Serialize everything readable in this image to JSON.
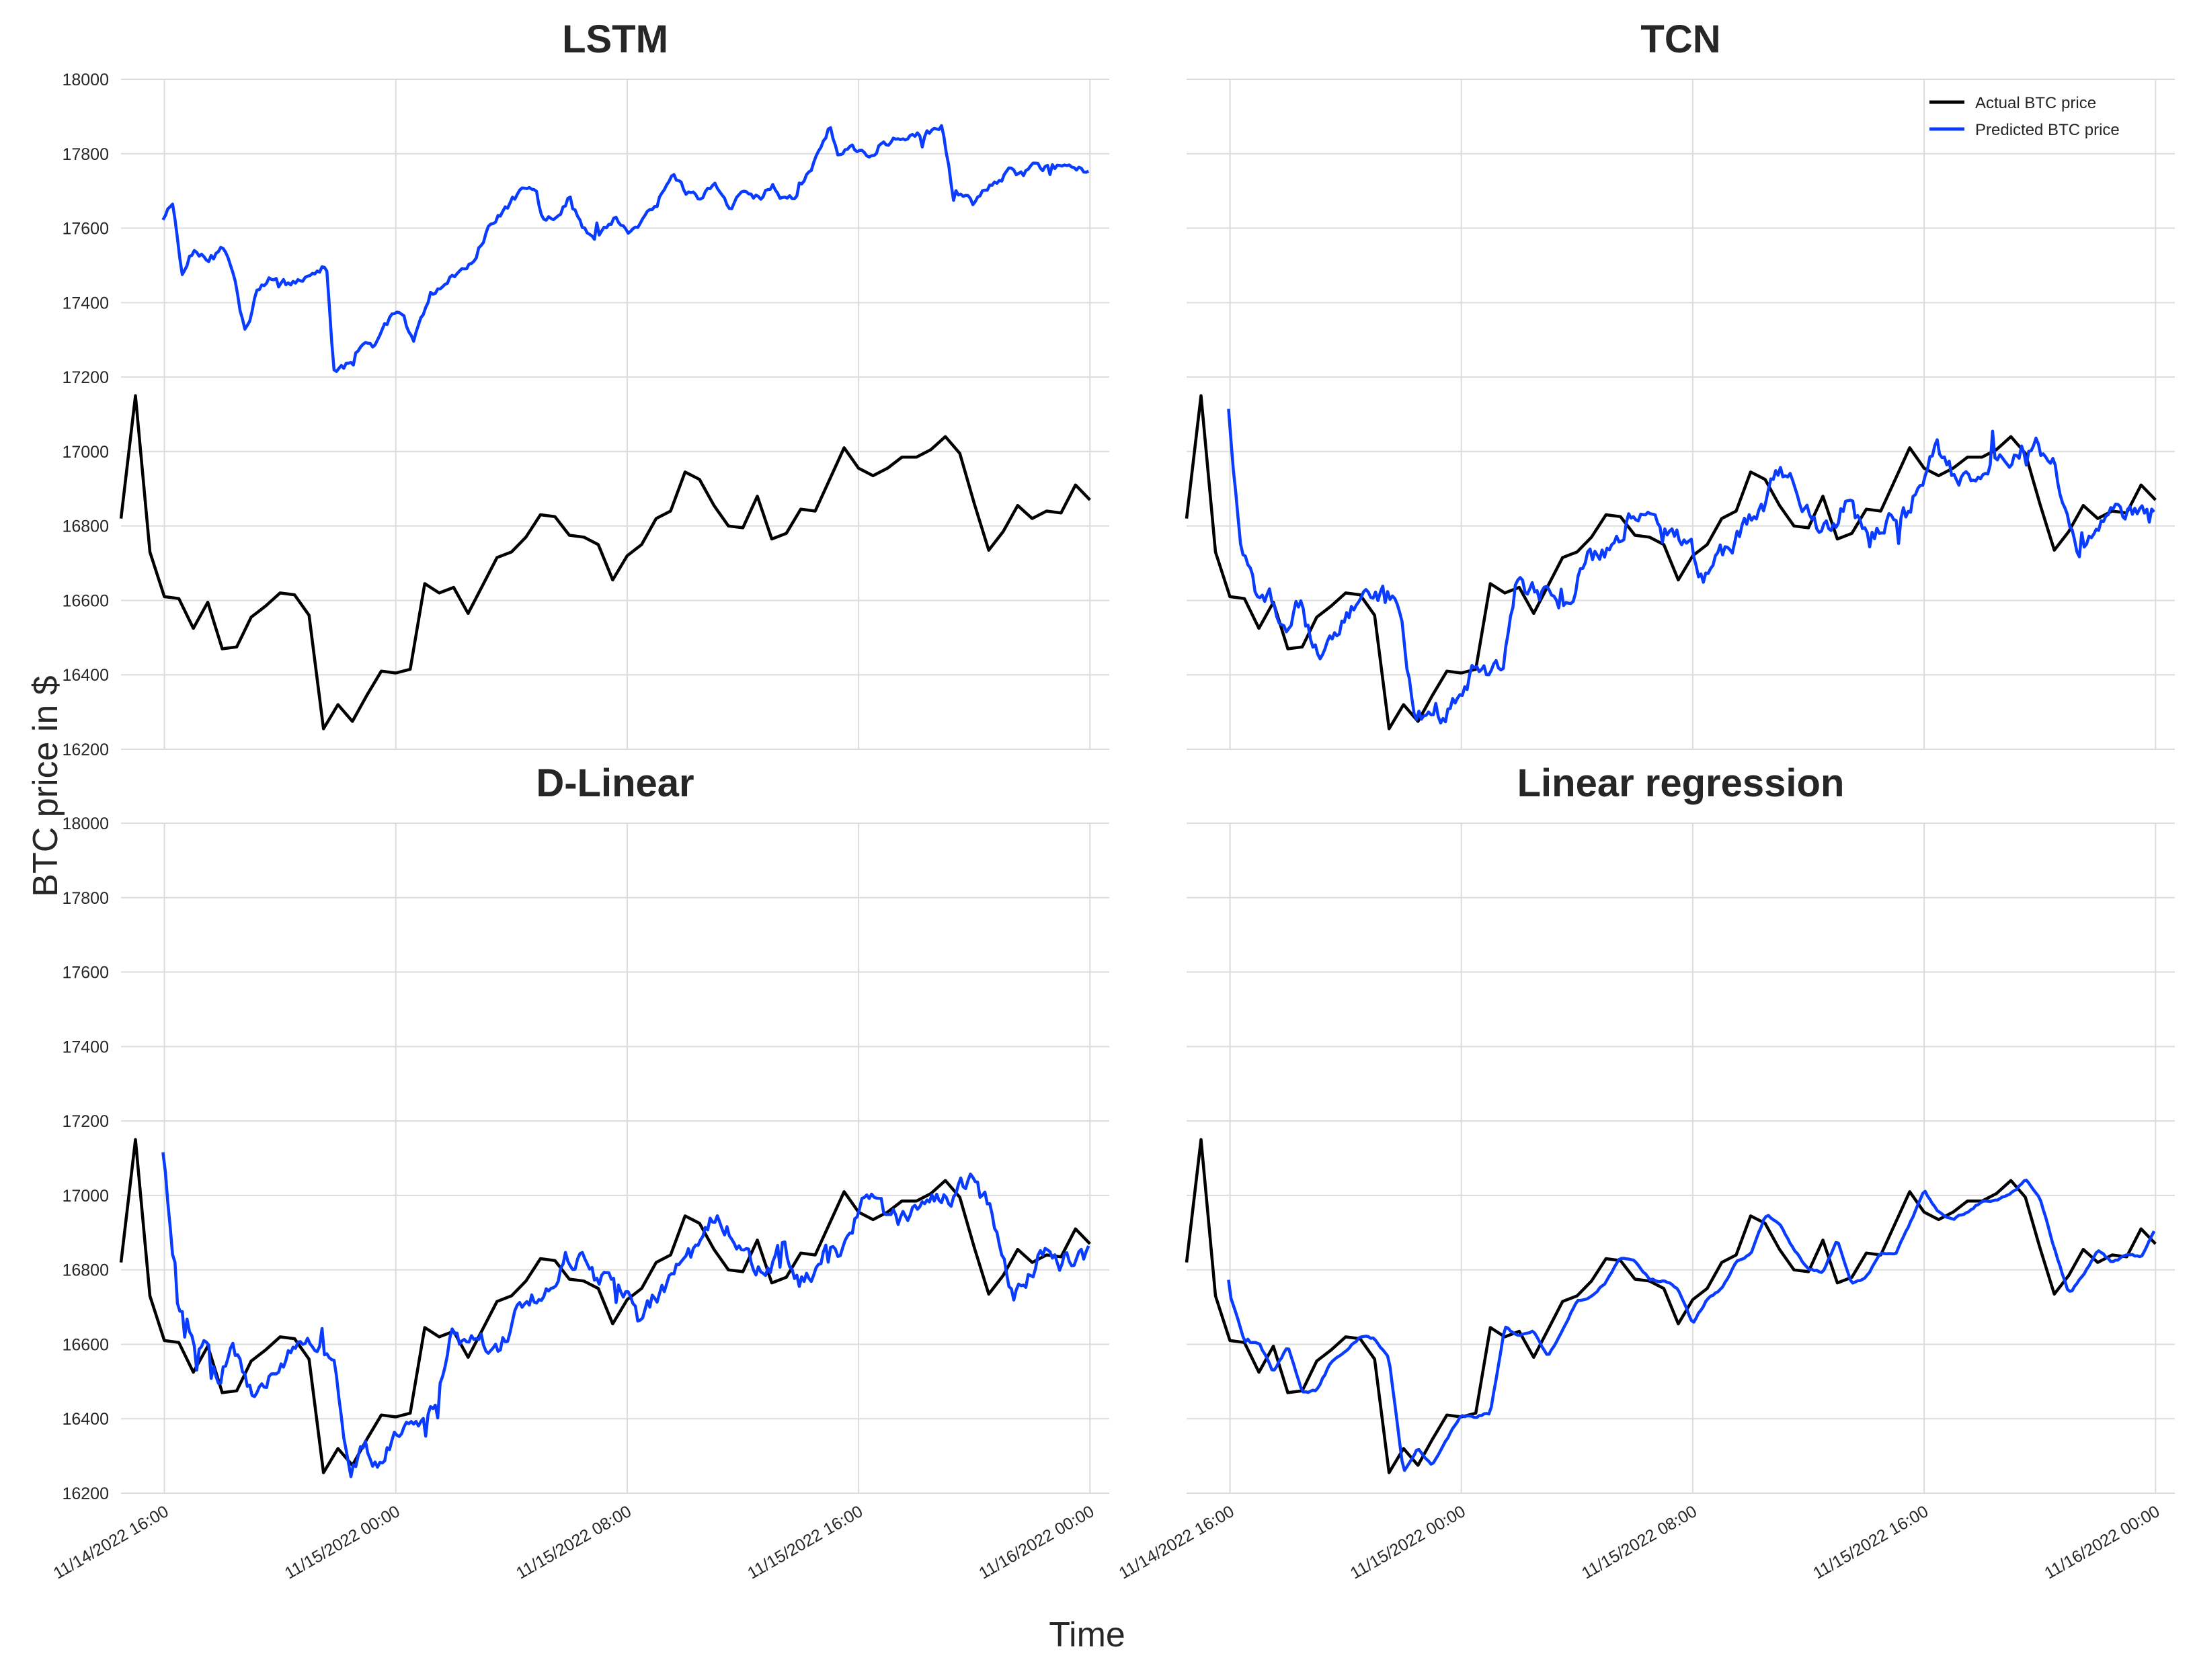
{
  "figure": {
    "ylabel": "BTC price in $",
    "xlabel": "Time",
    "yticks": [
      "18000",
      "17800",
      "17600",
      "17400",
      "17200",
      "17000",
      "16800",
      "16600",
      "16400",
      "16200"
    ],
    "xticks": [
      "11/14/2022 16:00",
      "11/15/2022 00:00",
      "11/15/2022 08:00",
      "11/15/2022 16:00",
      "11/16/2022 00:00"
    ]
  },
  "legend": {
    "actual_label": "Actual BTC price",
    "predicted_label": "Predicted BTC price"
  },
  "colors": {
    "actual": "#000000",
    "predicted": "#0a3cff"
  },
  "chart_data": {
    "type": "line",
    "x_axis": {
      "type": "datetime",
      "unit": "hours",
      "xlim": [
        "11/14/2022 14:30",
        "11/16/2022 00:40"
      ],
      "ticks": [
        "11/14/2022 16:00",
        "11/15/2022 00:00",
        "11/15/2022 08:00",
        "11/15/2022 16:00",
        "11/16/2022 00:00"
      ]
    },
    "ylim": [
      16200,
      18000
    ],
    "grid": true,
    "legend_position": "top-right of TCN panel",
    "actual": {
      "name": "Actual BTC price",
      "x": [
        "11/14/2022 14:30",
        "11/14/2022 15:00",
        "11/14/2022 15:30",
        "11/14/2022 16:00",
        "11/14/2022 16:30",
        "11/14/2022 17:00",
        "11/14/2022 17:30",
        "11/14/2022 18:00",
        "11/14/2022 18:30",
        "11/14/2022 19:00",
        "11/14/2022 19:30",
        "11/14/2022 20:00",
        "11/14/2022 20:30",
        "11/14/2022 21:00",
        "11/14/2022 21:30",
        "11/14/2022 22:00",
        "11/14/2022 22:30",
        "11/14/2022 23:00",
        "11/14/2022 23:30",
        "11/15/2022 00:00",
        "11/15/2022 00:30",
        "11/15/2022 01:00",
        "11/15/2022 01:30",
        "11/15/2022 02:00",
        "11/15/2022 02:30",
        "11/15/2022 03:00",
        "11/15/2022 03:30",
        "11/15/2022 04:00",
        "11/15/2022 04:30",
        "11/15/2022 05:00",
        "11/15/2022 05:30",
        "11/15/2022 06:00",
        "11/15/2022 06:30",
        "11/15/2022 07:00",
        "11/15/2022 07:30",
        "11/15/2022 08:00",
        "11/15/2022 08:30",
        "11/15/2022 09:00",
        "11/15/2022 09:30",
        "11/15/2022 10:00",
        "11/15/2022 10:30",
        "11/15/2022 11:00",
        "11/15/2022 11:30",
        "11/15/2022 12:00",
        "11/15/2022 12:30",
        "11/15/2022 13:00",
        "11/15/2022 13:30",
        "11/15/2022 14:00",
        "11/15/2022 14:30",
        "11/15/2022 15:00",
        "11/15/2022 15:30",
        "11/15/2022 16:00",
        "11/15/2022 16:30",
        "11/15/2022 17:00",
        "11/15/2022 17:30",
        "11/15/2022 18:00",
        "11/15/2022 18:30",
        "11/15/2022 19:00",
        "11/15/2022 19:30",
        "11/15/2022 20:00",
        "11/15/2022 20:30",
        "11/15/2022 21:00",
        "11/15/2022 21:30",
        "11/15/2022 22:00",
        "11/15/2022 22:30",
        "11/15/2022 23:00",
        "11/15/2022 23:30",
        "11/16/2022 00:00"
      ],
      "values": [
        16820,
        17150,
        16730,
        16610,
        16605,
        16525,
        16595,
        16470,
        16475,
        16555,
        16585,
        16620,
        16615,
        16560,
        16255,
        16320,
        16275,
        16345,
        16410,
        16405,
        16415,
        16645,
        16620,
        16635,
        16565,
        16640,
        16715,
        16730,
        16770,
        16830,
        16825,
        16775,
        16770,
        16750,
        16655,
        16720,
        16750,
        16820,
        16840,
        16945,
        16925,
        16855,
        16800,
        16795,
        16880,
        16765,
        16780,
        16845,
        16840,
        16925,
        17010,
        16955,
        16935,
        16955,
        16985,
        16985,
        17005,
        17040,
        16995,
        16860,
        16735,
        16785,
        16855,
        16820,
        16840,
        16835,
        16910,
        16870
      ]
    },
    "panels": [
      {
        "title": "LSTM",
        "predicted": {
          "name": "Predicted BTC price",
          "start": "11/14/2022 16:00",
          "end": "11/16/2022 00:00",
          "anchors": [
            [
              15.95,
              17620
            ],
            [
              16.3,
              17670
            ],
            [
              16.6,
              17470
            ],
            [
              17.0,
              17540
            ],
            [
              17.5,
              17520
            ],
            [
              18.0,
              17560
            ],
            [
              18.4,
              17470
            ],
            [
              18.8,
              17310
            ],
            [
              19.2,
              17430
            ],
            [
              19.8,
              17470
            ],
            [
              20.3,
              17450
            ],
            [
              21.0,
              17480
            ],
            [
              21.6,
              17500
            ],
            [
              21.85,
              17230
            ],
            [
              22.2,
              17220
            ],
            [
              22.8,
              17290
            ],
            [
              23.3,
              17280
            ],
            [
              23.9,
              17370
            ],
            [
              24.3,
              17360
            ],
            [
              24.6,
              17290
            ],
            [
              25.2,
              17420
            ],
            [
              25.7,
              17450
            ],
            [
              26.2,
              17490
            ],
            [
              26.7,
              17510
            ],
            [
              27.2,
              17600
            ],
            [
              27.8,
              17650
            ],
            [
              28.3,
              17700
            ],
            [
              28.8,
              17720
            ],
            [
              29.1,
              17620
            ],
            [
              29.6,
              17640
            ],
            [
              30.0,
              17680
            ],
            [
              30.5,
              17600
            ],
            [
              31.0,
              17580
            ],
            [
              31.6,
              17630
            ],
            [
              32.0,
              17590
            ],
            [
              32.5,
              17620
            ],
            [
              33.0,
              17660
            ],
            [
              33.5,
              17750
            ],
            [
              34.0,
              17700
            ],
            [
              34.5,
              17680
            ],
            [
              35.0,
              17720
            ],
            [
              35.5,
              17650
            ],
            [
              36.0,
              17700
            ],
            [
              36.6,
              17680
            ],
            [
              37.0,
              17720
            ],
            [
              37.4,
              17680
            ],
            [
              37.9,
              17690
            ],
            [
              38.2,
              17740
            ],
            [
              38.5,
              17780
            ],
            [
              39.0,
              17870
            ],
            [
              39.3,
              17800
            ],
            [
              39.8,
              17810
            ],
            [
              40.3,
              17790
            ],
            [
              40.8,
              17830
            ],
            [
              41.4,
              17840
            ],
            [
              41.9,
              17860
            ],
            [
              42.4,
              17860
            ],
            [
              42.9,
              17870
            ],
            [
              43.2,
              17720
            ],
            [
              43.6,
              17690
            ],
            [
              44.0,
              17660
            ],
            [
              44.4,
              17700
            ],
            [
              44.8,
              17720
            ],
            [
              45.2,
              17760
            ],
            [
              45.6,
              17740
            ],
            [
              46.0,
              17760
            ]
          ],
          "noise": 22
        }
      },
      {
        "title": "TCN",
        "predicted": {
          "name": "Predicted BTC price",
          "start": "11/14/2022 16:00",
          "end": "11/16/2022 00:00",
          "offset_hours": 0.9,
          "noise": 48
        }
      },
      {
        "title": "D-Linear",
        "predicted": {
          "name": "Predicted BTC price",
          "start": "11/14/2022 16:00",
          "end": "11/16/2022 00:00",
          "offset_hours": 0.9,
          "noise": 48
        }
      },
      {
        "title": "Linear regression",
        "predicted": {
          "name": "Predicted BTC price",
          "start": "11/14/2022 16:00",
          "end": "11/16/2022 00:00",
          "offset_hours": 0.5,
          "noise": 6
        }
      }
    ]
  }
}
